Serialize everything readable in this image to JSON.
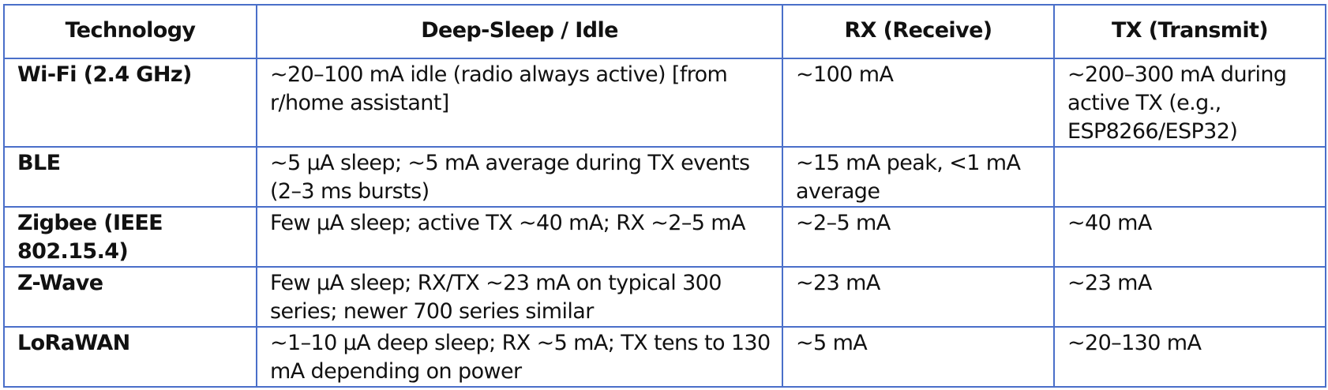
{
  "table": {
    "headers": [
      "Technology",
      "Deep-Sleep / Idle",
      "RX (Receive)",
      "TX (Transmit)"
    ],
    "rows": [
      {
        "technology": "Wi-Fi (2.4 GHz)",
        "idle": "~20–100 mA idle (radio always active) [from r/home assistant]",
        "rx": "~100 mA",
        "tx": "~200–300 mA during active TX (e.g., ESP8266/ESP32)"
      },
      {
        "technology": "BLE",
        "idle": "~5 µA sleep; ~5 mA average during TX events (2–3 ms bursts)",
        "rx": "~15 mA peak, <1 mA average",
        "tx": ""
      },
      {
        "technology": "Zigbee (IEEE 802.15.4)",
        "idle": "Few µA sleep; active TX ~40 mA; RX ~2–5 mA",
        "rx": "~2–5 mA",
        "tx": "~40 mA"
      },
      {
        "technology": "Z-Wave",
        "idle": "Few µA sleep; RX/TX ~23 mA on typical 300 series; newer 700 series similar",
        "rx": "~23 mA",
        "tx": "~23 mA"
      },
      {
        "technology": "LoRaWAN",
        "idle": "~1–10 µA deep sleep; RX ~5 mA; TX tens to 130 mA depending on power",
        "rx": "~5 mA",
        "tx": "~20–130 mA"
      }
    ],
    "border_color": "#4a6fc9"
  }
}
